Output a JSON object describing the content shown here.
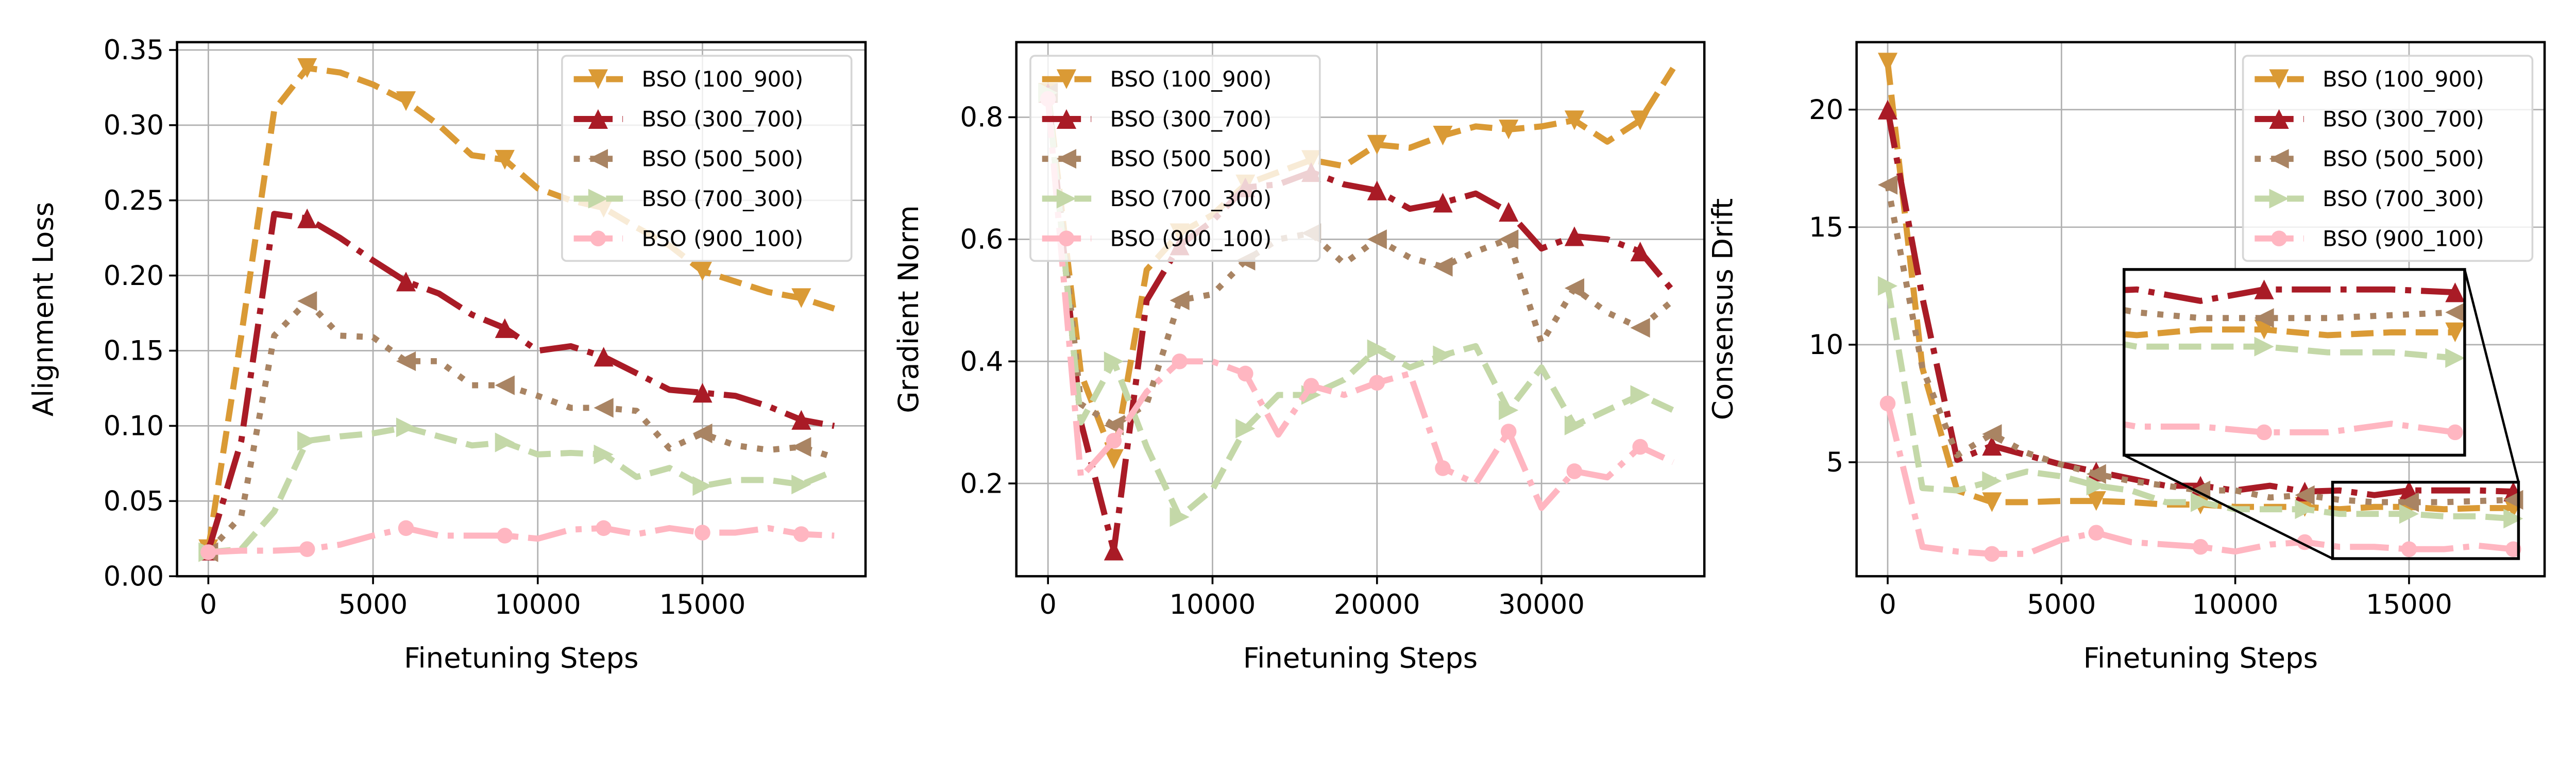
{
  "styles": {
    "BSO (100_900)": {
      "color": "#DA9A35",
      "dash": "dashed",
      "marker": "triangle-down"
    },
    "BSO (300_700)": {
      "color": "#A91B26",
      "dash": "dashdot",
      "marker": "triangle-up"
    },
    "BSO (500_500)": {
      "color": "#A98463",
      "dash": "dotted",
      "marker": "triangle-left"
    },
    "BSO (700_300)": {
      "color": "#C4D8A8",
      "dash": "dashed",
      "marker": "triangle-right"
    },
    "BSO (900_100)": {
      "color": "#FFB6C1",
      "dash": "dashdot",
      "marker": "circle"
    }
  },
  "chart_data": [
    {
      "type": "line",
      "xlabel": "Finetuning Steps",
      "ylabel": "Alignment Loss",
      "xlim": [
        -950,
        19950
      ],
      "ylim": [
        0,
        0.3552
      ],
      "grid": true,
      "legend": "upper-right",
      "xticks": [
        0,
        5000,
        10000,
        15000
      ],
      "xtick_labels": [
        "0",
        "5000",
        "10000",
        "15000"
      ],
      "yticks": [
        0,
        0.05,
        0.1,
        0.15,
        0.2,
        0.25,
        0.3,
        0.35
      ],
      "ytick_labels": [
        "0.00",
        "0.05",
        "0.10",
        "0.15",
        "0.20",
        "0.25",
        "0.30",
        "0.35"
      ],
      "marker_every": 3,
      "x": [
        0,
        1000,
        2000,
        3000,
        4000,
        5000,
        6000,
        7000,
        8000,
        9000,
        10000,
        11000,
        12000,
        13000,
        14000,
        15000,
        16000,
        17000,
        18000,
        19000
      ],
      "series": [
        {
          "name": "BSO (100_900)",
          "values": [
            0.018,
            0.16,
            0.31,
            0.338,
            0.335,
            0.327,
            0.316,
            0.3,
            0.28,
            0.277,
            0.258,
            0.25,
            0.245,
            0.232,
            0.22,
            0.203,
            0.196,
            0.189,
            0.185,
            0.178
          ]
        },
        {
          "name": "BSO (300_700)",
          "values": [
            0.017,
            0.09,
            0.241,
            0.238,
            0.225,
            0.21,
            0.196,
            0.188,
            0.174,
            0.165,
            0.15,
            0.153,
            0.146,
            0.135,
            0.124,
            0.122,
            0.12,
            0.113,
            0.104,
            0.1
          ]
        },
        {
          "name": "BSO (500_500)",
          "values": [
            0.016,
            0.04,
            0.16,
            0.183,
            0.16,
            0.159,
            0.143,
            0.143,
            0.127,
            0.127,
            0.12,
            0.112,
            0.112,
            0.11,
            0.085,
            0.095,
            0.087,
            0.084,
            0.086,
            0.079
          ]
        },
        {
          "name": "BSO (700_300)",
          "values": [
            0.016,
            0.018,
            0.043,
            0.09,
            0.093,
            0.095,
            0.099,
            0.093,
            0.087,
            0.089,
            0.081,
            0.082,
            0.081,
            0.066,
            0.072,
            0.06,
            0.064,
            0.064,
            0.061,
            0.07
          ]
        },
        {
          "name": "BSO (900_100)",
          "values": [
            0.016,
            0.017,
            0.017,
            0.018,
            0.021,
            0.027,
            0.032,
            0.027,
            0.027,
            0.027,
            0.025,
            0.031,
            0.032,
            0.028,
            0.032,
            0.029,
            0.029,
            0.032,
            0.028,
            0.027
          ]
        }
      ]
    },
    {
      "type": "line",
      "xlabel": "Finetuning Steps",
      "ylabel": "Gradient Norm",
      "xlim": [
        -1925,
        39900
      ],
      "ylim": [
        0.048,
        0.923
      ],
      "grid": true,
      "legend": "upper-left",
      "xticks": [
        0,
        10000,
        20000,
        30000
      ],
      "xtick_labels": [
        "0",
        "10000",
        "20000",
        "30000"
      ],
      "yticks": [
        0.2,
        0.4,
        0.6,
        0.8
      ],
      "ytick_labels": [
        "0.2",
        "0.4",
        "0.6",
        "0.8"
      ],
      "marker_every": 2,
      "x": [
        0,
        2000,
        4000,
        6000,
        8000,
        10000,
        12000,
        14000,
        16000,
        18000,
        20000,
        22000,
        24000,
        26000,
        28000,
        30000,
        32000,
        34000,
        36000,
        38000
      ],
      "series": [
        {
          "name": "BSO (100_900)",
          "values": [
            0.84,
            0.38,
            0.24,
            0.55,
            0.61,
            0.64,
            0.69,
            0.71,
            0.73,
            0.72,
            0.755,
            0.75,
            0.77,
            0.785,
            0.78,
            0.785,
            0.795,
            0.76,
            0.795,
            0.88
          ]
        },
        {
          "name": "BSO (300_700)",
          "values": [
            0.84,
            0.3,
            0.09,
            0.5,
            0.59,
            0.63,
            0.685,
            0.69,
            0.71,
            0.69,
            0.68,
            0.65,
            0.66,
            0.675,
            0.645,
            0.585,
            0.605,
            0.6,
            0.58,
            0.515
          ]
        },
        {
          "name": "BSO (500_500)",
          "values": [
            0.84,
            0.33,
            0.295,
            0.33,
            0.5,
            0.51,
            0.565,
            0.6,
            0.61,
            0.56,
            0.6,
            0.57,
            0.555,
            0.58,
            0.6,
            0.43,
            0.52,
            0.48,
            0.455,
            0.5
          ]
        },
        {
          "name": "BSO (700_300)",
          "values": [
            0.84,
            0.3,
            0.4,
            0.26,
            0.145,
            0.19,
            0.29,
            0.345,
            0.345,
            0.37,
            0.42,
            0.39,
            0.41,
            0.425,
            0.32,
            0.39,
            0.295,
            0.32,
            0.345,
            0.32
          ]
        },
        {
          "name": "BSO (900_100)",
          "values": [
            0.83,
            0.21,
            0.27,
            0.35,
            0.4,
            0.4,
            0.38,
            0.28,
            0.36,
            0.345,
            0.365,
            0.38,
            0.225,
            0.2,
            0.285,
            0.16,
            0.22,
            0.21,
            0.26,
            0.235
          ]
        }
      ]
    },
    {
      "type": "line",
      "xlabel": "Finetuning Steps",
      "ylabel": "Consensus Drift",
      "xlim": [
        -895,
        18900
      ],
      "ylim": [
        0.15,
        22.87
      ],
      "grid": true,
      "legend": "upper-right",
      "xticks": [
        0,
        5000,
        10000,
        15000
      ],
      "xtick_labels": [
        "0",
        "5000",
        "10000",
        "15000"
      ],
      "yticks": [
        5,
        10,
        15,
        20
      ],
      "ytick_labels": [
        "5",
        "10",
        "15",
        "20"
      ],
      "marker_every": 3,
      "x": [
        0,
        1000,
        2000,
        3000,
        4000,
        5000,
        6000,
        7000,
        8000,
        9000,
        10000,
        11000,
        12000,
        13000,
        14000,
        15000,
        16000,
        17000,
        18000
      ],
      "series": [
        {
          "name": "BSO (100_900)",
          "values": [
            22,
            9,
            3.8,
            3.3,
            3.3,
            3.35,
            3.35,
            3.3,
            3.2,
            3.2,
            3.1,
            3.1,
            3.1,
            3.0,
            3.1,
            3.1,
            3.0,
            3.05,
            3.05
          ]
        },
        {
          "name": "BSO (300_700)",
          "values": [
            20,
            12,
            5.1,
            5.7,
            5.3,
            4.9,
            4.6,
            4.3,
            4.0,
            4.0,
            3.8,
            4.0,
            3.75,
            3.8,
            3.6,
            3.8,
            3.8,
            3.8,
            3.75
          ]
        },
        {
          "name": "BSO (500_500)",
          "values": [
            16.8,
            9,
            5.3,
            6.2,
            5.4,
            4.9,
            4.5,
            4.2,
            4.0,
            3.8,
            3.8,
            3.5,
            3.6,
            3.4,
            3.3,
            3.3,
            3.3,
            3.35,
            3.4
          ]
        },
        {
          "name": "BSO (700_300)",
          "values": [
            12.5,
            3.9,
            3.8,
            4.2,
            4.6,
            4.4,
            4.0,
            3.8,
            3.3,
            3.3,
            3.0,
            3.0,
            3.0,
            2.8,
            2.8,
            2.8,
            2.7,
            2.7,
            2.6
          ]
        },
        {
          "name": "BSO (900_100)",
          "values": [
            7.5,
            1.4,
            1.2,
            1.1,
            1.1,
            1.7,
            2.0,
            1.6,
            1.5,
            1.4,
            1.2,
            1.5,
            1.6,
            1.4,
            1.4,
            1.3,
            1.3,
            1.45,
            1.3
          ]
        }
      ],
      "inset": {
        "xlim": [
          12800,
          18150
        ],
        "ylim": [
          0.9,
          4.15
        ],
        "placement_xlim": [
          6800,
          16600
        ],
        "placement_ylim": [
          5.3,
          13.2
        ]
      }
    }
  ]
}
